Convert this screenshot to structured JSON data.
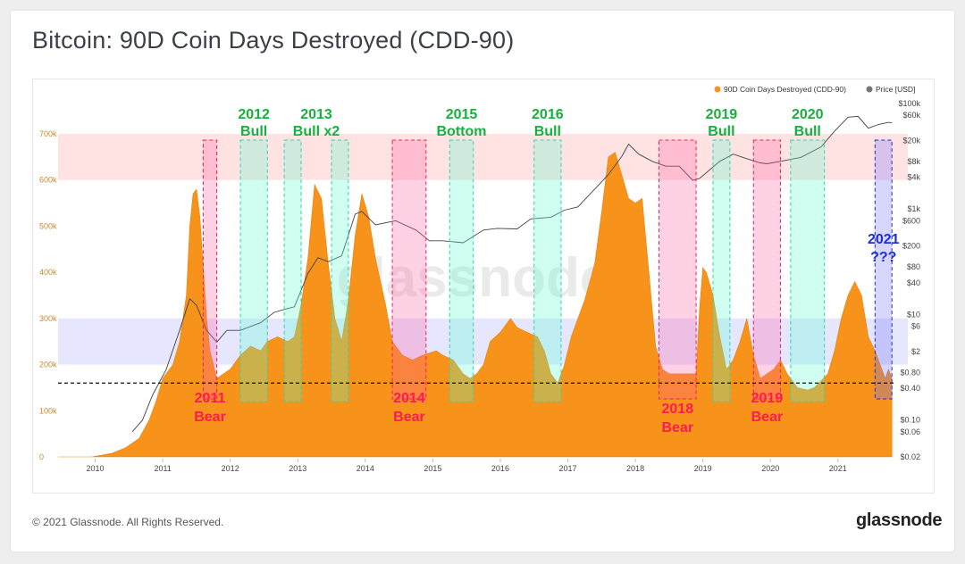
{
  "page": {
    "title": "Bitcoin: 90D Coin Days Destroyed (CDD-90)",
    "copyright": "© 2021 Glassnode. All Rights Reserved.",
    "logo": "glassnode",
    "watermark": "glassnode"
  },
  "colors": {
    "cdd": "#f7931a",
    "price": "#444444",
    "bull": "#16b03c",
    "bear": "#ff1a55",
    "question": "#1d2fd6",
    "red_zone": "#ff8080",
    "blue_zone": "#8f8fff",
    "bull_fill": "#57ffd2",
    "bear_fill": "#ff5aa0",
    "q_fill": "#6a6aff"
  },
  "chart_data": {
    "type": "area",
    "title": "Bitcoin: 90D Coin Days Destroyed (CDD-90)",
    "legend": [
      {
        "name": "90D Coin Days Destroyed (CDD-90)",
        "color": "#f7931a"
      },
      {
        "name": "Price [USD]",
        "color": "#777777"
      }
    ],
    "legend_position": "top-right",
    "x_ticks": [
      "2010",
      "2011",
      "2012",
      "2013",
      "2014",
      "2015",
      "2016",
      "2017",
      "2018",
      "2019",
      "2020",
      "2021"
    ],
    "x_range": [
      2009.5,
      2021.9
    ],
    "y_left": {
      "ticks": [
        "0",
        "100k",
        "200k",
        "300k",
        "400k",
        "500k",
        "600k",
        "700k"
      ],
      "values": [
        0,
        100000,
        200000,
        300000,
        400000,
        500000,
        600000,
        700000
      ],
      "range": [
        0,
        760000
      ]
    },
    "y_right": {
      "scale": "log",
      "ticks": [
        "$0.02",
        "$0.06",
        "$0.10",
        "$0.40",
        "$0.80",
        "$2",
        "$6",
        "$10",
        "$40",
        "$80",
        "$200",
        "$600",
        "$1k",
        "$4k",
        "$8k",
        "$20k",
        "$60k",
        "$100k"
      ],
      "values": [
        0.02,
        0.06,
        0.1,
        0.4,
        0.8,
        2,
        6,
        10,
        40,
        80,
        200,
        600,
        1000,
        4000,
        8000,
        20000,
        60000,
        100000
      ]
    },
    "zones": [
      {
        "color": "red",
        "y_range": [
          600000,
          700000
        ]
      },
      {
        "color": "blue",
        "y_range": [
          200000,
          300000
        ]
      }
    ],
    "baseline": 160000,
    "series": [
      {
        "name": "90D Coin Days Destroyed (CDD-90)",
        "x": [
          2009.5,
          2010.0,
          2010.3,
          2010.5,
          2010.7,
          2010.85,
          2010.95,
          2011.05,
          2011.2,
          2011.3,
          2011.4,
          2011.45,
          2011.5,
          2011.55,
          2011.6,
          2011.7,
          2011.75,
          2011.85,
          2011.95,
          2012.05,
          2012.2,
          2012.35,
          2012.5,
          2012.6,
          2012.75,
          2012.9,
          2013.0,
          2013.1,
          2013.2,
          2013.3,
          2013.4,
          2013.5,
          2013.6,
          2013.7,
          2013.8,
          2013.9,
          2014.0,
          2014.1,
          2014.2,
          2014.35,
          2014.45,
          2014.6,
          2014.75,
          2014.9,
          2015.1,
          2015.2,
          2015.35,
          2015.5,
          2015.6,
          2015.7,
          2015.8,
          2015.9,
          2016.05,
          2016.2,
          2016.3,
          2016.45,
          2016.6,
          2016.7,
          2016.8,
          2016.9,
          2017.0,
          2017.1,
          2017.2,
          2017.3,
          2017.45,
          2017.55,
          2017.65,
          2017.75,
          2017.85,
          2017.95,
          2018.05,
          2018.15,
          2018.25,
          2018.35,
          2018.45,
          2018.55,
          2018.7,
          2018.85,
          2018.95,
          2019.0,
          2019.05,
          2019.1,
          2019.2,
          2019.3,
          2019.4,
          2019.5,
          2019.6,
          2019.7,
          2019.8,
          2019.9,
          2020.0,
          2020.1,
          2020.2,
          2020.3,
          2020.45,
          2020.6,
          2020.7,
          2020.8,
          2020.9,
          2021.0,
          2021.1,
          2021.2,
          2021.3,
          2021.4,
          2021.5,
          2021.6,
          2021.7,
          2021.75,
          2021.8,
          2021.85
        ],
        "values": [
          0,
          0,
          8000,
          20000,
          40000,
          80000,
          120000,
          170000,
          200000,
          250000,
          350000,
          500000,
          570000,
          580000,
          520000,
          300000,
          230000,
          170000,
          180000,
          190000,
          220000,
          240000,
          230000,
          250000,
          260000,
          250000,
          260000,
          330000,
          430000,
          590000,
          560000,
          420000,
          300000,
          250000,
          340000,
          480000,
          570000,
          520000,
          430000,
          330000,
          250000,
          220000,
          210000,
          220000,
          230000,
          220000,
          210000,
          180000,
          170000,
          180000,
          200000,
          250000,
          270000,
          300000,
          280000,
          270000,
          260000,
          230000,
          180000,
          160000,
          200000,
          260000,
          300000,
          340000,
          420000,
          530000,
          650000,
          660000,
          610000,
          560000,
          550000,
          560000,
          400000,
          240000,
          190000,
          180000,
          180000,
          180000,
          180000,
          320000,
          410000,
          400000,
          350000,
          260000,
          190000,
          210000,
          250000,
          300000,
          220000,
          170000,
          180000,
          190000,
          210000,
          180000,
          150000,
          145000,
          150000,
          165000,
          180000,
          230000,
          300000,
          350000,
          380000,
          350000,
          260000,
          230000,
          190000,
          170000,
          190000,
          170000
        ]
      },
      {
        "name": "Price [USD]",
        "x": [
          2010.6,
          2010.75,
          2010.9,
          2011.1,
          2011.3,
          2011.45,
          2011.55,
          2011.7,
          2011.85,
          2012.0,
          2012.2,
          2012.5,
          2012.7,
          2012.9,
          2013.0,
          2013.2,
          2013.35,
          2013.5,
          2013.7,
          2013.9,
          2014.0,
          2014.2,
          2014.5,
          2014.8,
          2015.0,
          2015.2,
          2015.5,
          2015.8,
          2016.0,
          2016.3,
          2016.5,
          2016.8,
          2017.0,
          2017.2,
          2017.45,
          2017.65,
          2017.85,
          2017.95,
          2018.1,
          2018.3,
          2018.5,
          2018.7,
          2018.9,
          2019.0,
          2019.3,
          2019.5,
          2019.7,
          2019.9,
          2020.0,
          2020.2,
          2020.5,
          2020.8,
          2021.0,
          2021.2,
          2021.35,
          2021.5,
          2021.65,
          2021.8,
          2021.85
        ],
        "values": [
          0.06,
          0.1,
          0.3,
          0.9,
          5,
          20,
          15,
          5,
          3,
          5,
          5,
          7,
          11,
          13,
          14,
          60,
          120,
          100,
          130,
          800,
          900,
          500,
          600,
          400,
          250,
          250,
          230,
          400,
          430,
          420,
          650,
          700,
          950,
          1100,
          2400,
          4500,
          10000,
          17000,
          11000,
          8000,
          6500,
          6500,
          3500,
          3800,
          8000,
          11000,
          9000,
          7500,
          7200,
          8000,
          9500,
          15000,
          30000,
          55000,
          57000,
          34000,
          40000,
          44000,
          43000
        ]
      }
    ],
    "annotations": [
      {
        "kind": "bull",
        "line1": "2012",
        "line2": "Bull",
        "x0": 2012.2,
        "x1": 2012.6
      },
      {
        "kind": "bull",
        "line1": "2013",
        "line2": "Bull x2",
        "x0": 2012.85,
        "x1": 2013.1,
        "x0b": 2013.55,
        "x1b": 2013.8
      },
      {
        "kind": "bull",
        "line1": "2015",
        "line2": "Bottom",
        "x0": 2015.3,
        "x1": 2015.65
      },
      {
        "kind": "bull",
        "line1": "2016",
        "line2": "Bull",
        "x0": 2016.55,
        "x1": 2016.95
      },
      {
        "kind": "bull",
        "line1": "2019",
        "line2": "Bull",
        "x0": 2019.2,
        "x1": 2019.45
      },
      {
        "kind": "bull",
        "line1": "2020",
        "line2": "Bull",
        "x0": 2020.35,
        "x1": 2020.85
      },
      {
        "kind": "bear",
        "line1": "2011",
        "line2": "Bear",
        "x0": 2011.65,
        "x1": 2011.85
      },
      {
        "kind": "bear",
        "line1": "2014",
        "line2": "Bear",
        "x0": 2014.45,
        "x1": 2014.95
      },
      {
        "kind": "bear",
        "line1": "2018",
        "line2": "Bear",
        "x0": 2018.4,
        "x1": 2018.95
      },
      {
        "kind": "bear",
        "line1": "2019",
        "line2": "Bear",
        "x0": 2019.8,
        "x1": 2020.2
      },
      {
        "kind": "question",
        "line1": "2021",
        "line2": "???",
        "x0": 2021.6,
        "x1": 2021.85
      }
    ]
  }
}
